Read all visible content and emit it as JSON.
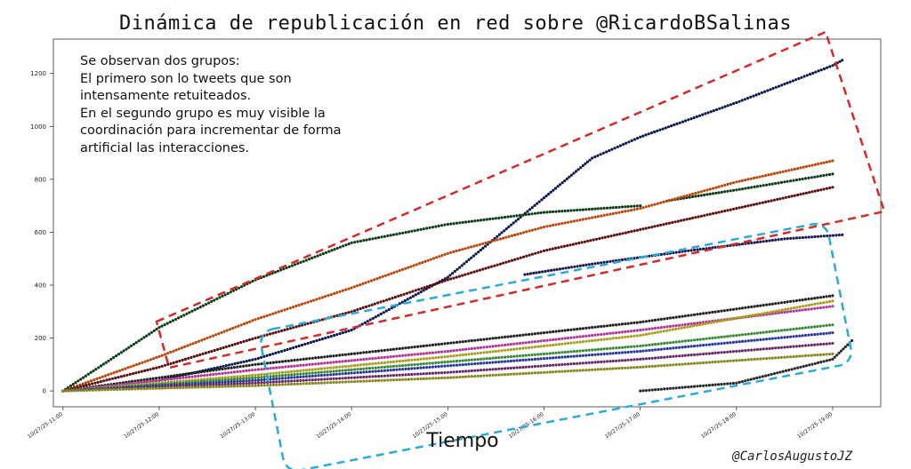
{
  "chart_data": {
    "type": "scatter",
    "title": "Dinámica de republicación en red sobre @RicardoBSalinas",
    "xlabel": "Tiempo",
    "ylabel": "",
    "ylim": [
      -60,
      1330
    ],
    "yticks": [
      0,
      200,
      400,
      600,
      800,
      1000,
      1200
    ],
    "xticks": [
      "10/27/25-11:00",
      "10/27/25-12:00",
      "10/27/25-13:00",
      "10/27/25-14:00",
      "10/27/25-15:00",
      "10/27/25-16:00",
      "10/27/25-17:00",
      "10/27/25-18:00",
      "10/27/25-19:00"
    ],
    "xlim": [
      10.9,
      19.5
    ],
    "series": [
      {
        "color": "#0b1a4f",
        "points": [
          [
            11.0,
            0
          ],
          [
            12.0,
            40
          ],
          [
            13.0,
            120
          ],
          [
            14.0,
            230
          ],
          [
            15.0,
            430
          ],
          [
            16.0,
            730
          ],
          [
            16.5,
            880
          ],
          [
            17.0,
            960
          ],
          [
            18.0,
            1090
          ],
          [
            19.0,
            1230
          ],
          [
            19.1,
            1250
          ]
        ]
      },
      {
        "color": "#0f3d18",
        "points": [
          [
            11.0,
            0
          ],
          [
            11.5,
            120
          ],
          [
            12.0,
            240
          ],
          [
            13.0,
            420
          ],
          [
            14.0,
            560
          ],
          [
            15.0,
            630
          ],
          [
            16.0,
            675
          ],
          [
            17.0,
            700
          ]
        ]
      },
      {
        "color": "#0f3d18",
        "points": [
          [
            17.3,
            720
          ],
          [
            18.0,
            760
          ],
          [
            19.0,
            820
          ]
        ]
      },
      {
        "color": "#b84a10",
        "points": [
          [
            11.0,
            0
          ],
          [
            12.0,
            130
          ],
          [
            13.0,
            270
          ],
          [
            14.0,
            390
          ],
          [
            15.0,
            520
          ],
          [
            16.0,
            620
          ],
          [
            17.0,
            690
          ],
          [
            18.0,
            790
          ],
          [
            19.0,
            870
          ]
        ]
      },
      {
        "color": "#5a1010",
        "points": [
          [
            11.0,
            0
          ],
          [
            12.0,
            90
          ],
          [
            13.0,
            200
          ],
          [
            14.0,
            300
          ],
          [
            15.0,
            420
          ],
          [
            16.0,
            530
          ],
          [
            17.0,
            610
          ],
          [
            18.0,
            690
          ],
          [
            19.0,
            770
          ]
        ]
      },
      {
        "color": "#1a1a50",
        "points": [
          [
            15.8,
            440
          ],
          [
            16.5,
            480
          ],
          [
            17.5,
            530
          ],
          [
            18.5,
            575
          ],
          [
            19.1,
            590
          ]
        ]
      },
      {
        "color": "#222222",
        "points": [
          [
            11.0,
            0
          ],
          [
            13.0,
            100
          ],
          [
            15.0,
            180
          ],
          [
            17.0,
            260
          ],
          [
            19.0,
            360
          ]
        ]
      },
      {
        "color": "#b0389a",
        "points": [
          [
            11.0,
            0
          ],
          [
            13.0,
            80
          ],
          [
            15.0,
            150
          ],
          [
            17.0,
            230
          ],
          [
            19.0,
            320
          ]
        ]
      },
      {
        "color": "#a8a020",
        "points": [
          [
            11.0,
            0
          ],
          [
            13.0,
            60
          ],
          [
            15.0,
            130
          ],
          [
            17.0,
            210
          ],
          [
            19.0,
            340
          ]
        ]
      },
      {
        "color": "#3a8a3a",
        "points": [
          [
            11.0,
            0
          ],
          [
            13.0,
            50
          ],
          [
            15.0,
            110
          ],
          [
            17.0,
            170
          ],
          [
            19.0,
            250
          ]
        ]
      },
      {
        "color": "#2a3a9a",
        "points": [
          [
            11.0,
            0
          ],
          [
            13.0,
            40
          ],
          [
            15.0,
            95
          ],
          [
            17.0,
            150
          ],
          [
            19.0,
            220
          ]
        ]
      },
      {
        "color": "#6a2a6a",
        "points": [
          [
            11.0,
            0
          ],
          [
            13.0,
            30
          ],
          [
            15.0,
            70
          ],
          [
            17.0,
            120
          ],
          [
            19.0,
            180
          ]
        ]
      },
      {
        "color": "#888820",
        "points": [
          [
            11.0,
            0
          ],
          [
            13.0,
            20
          ],
          [
            15.0,
            50
          ],
          [
            17.0,
            90
          ],
          [
            19.0,
            140
          ]
        ]
      },
      {
        "color": "#2a2a2a",
        "points": [
          [
            17.0,
            0
          ],
          [
            18.0,
            30
          ],
          [
            19.0,
            120
          ],
          [
            19.2,
            190
          ]
        ]
      }
    ],
    "annotation": [
      "Se observan dos grupos:",
      "El primero son lo tweets que son",
      "intensamente retuiteados.",
      "En el segundo grupo es muy visible la",
      "coordinación para incrementar de forma",
      "artificial las interacciones."
    ],
    "credit": "@CarlosAugustoJZ",
    "colors": {
      "red_box": "#d42a2a",
      "blue_box": "#2aaad8"
    }
  }
}
